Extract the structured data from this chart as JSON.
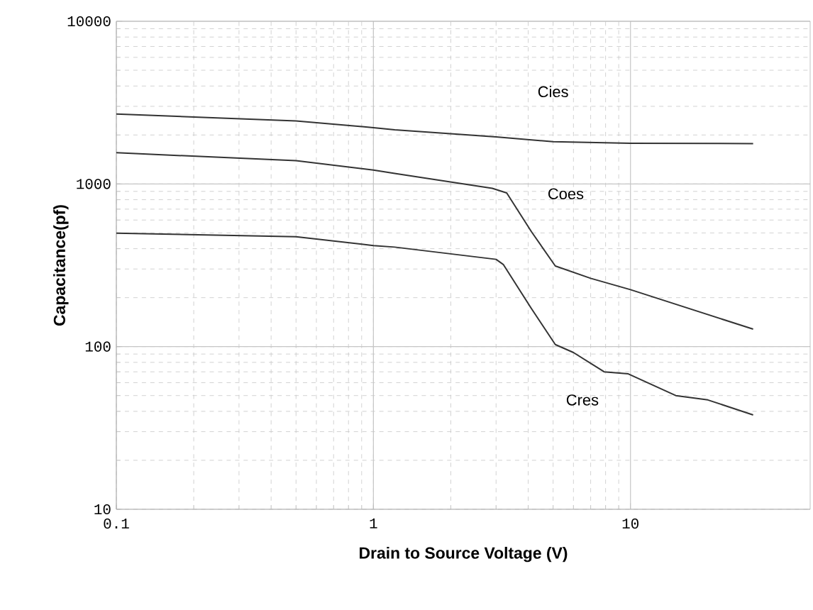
{
  "chart_data": {
    "type": "line",
    "xlabel": "Drain to Source Voltage (V)",
    "ylabel": "Capacitance(pf)",
    "log": "xy",
    "grid": true,
    "legend": false,
    "marker": "none",
    "line_style": "solid",
    "xlim": [
      0.1,
      50
    ],
    "xticks": [
      0.1,
      1,
      10
    ],
    "ylim": [
      10,
      10000
    ],
    "yticks": [
      10,
      100,
      1000,
      10000
    ],
    "series": [
      {
        "name": "Cies",
        "color": "#333333",
        "x": [
          0.1,
          0.5,
          1,
          1.21,
          3,
          5,
          10,
          30
        ],
        "values": [
          2690,
          2440,
          2220,
          2150,
          1945,
          1820,
          1780,
          1770
        ]
      },
      {
        "name": "Coes",
        "color": "#333333",
        "x": [
          0.1,
          0.5,
          1,
          1.21,
          2.9,
          3.3,
          4.12,
          5.1,
          7,
          10,
          30
        ],
        "values": [
          1556,
          1390,
          1216,
          1160,
          940,
          880,
          508,
          313,
          263,
          224,
          128
        ]
      },
      {
        "name": "Cres",
        "color": "#333333",
        "x": [
          0.1,
          0.5,
          1,
          1.21,
          3,
          3.2,
          4.1,
          5.1,
          6,
          7.9,
          9.8,
          15,
          20,
          30
        ],
        "values": [
          498,
          474,
          418,
          409,
          344,
          320,
          173,
          103,
          92,
          70,
          68,
          50,
          47,
          38
        ]
      }
    ]
  }
}
